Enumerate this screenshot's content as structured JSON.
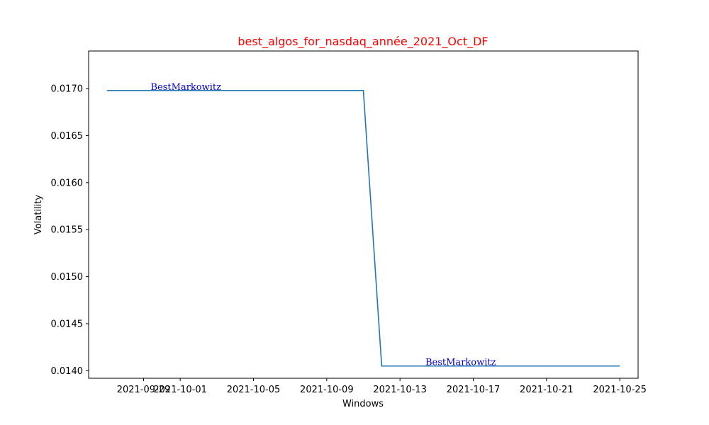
{
  "chart_data": {
    "type": "line",
    "title": "best_algos_for_nasdaq_année_2021_Oct_DF",
    "title_color": "#ff0000",
    "xlabel": "Windows",
    "ylabel": "Volatility",
    "x_ticks": [
      "2021-09-29",
      "2021-10-01",
      "2021-10-05",
      "2021-10-09",
      "2021-10-13",
      "2021-10-17",
      "2021-10-21",
      "2021-10-25"
    ],
    "y_ticks": [
      "0.0140",
      "0.0145",
      "0.0150",
      "0.0155",
      "0.0160",
      "0.0165",
      "0.0170"
    ],
    "xlim": [
      "2021-09-26",
      "2021-10-26"
    ],
    "ylim": [
      0.01392,
      0.0174
    ],
    "grid": false,
    "series": [
      {
        "color": "#1f77b4",
        "points": [
          {
            "x": "2021-09-27",
            "y": 0.01698
          },
          {
            "x": "2021-10-11",
            "y": 0.01698
          },
          {
            "x": "2021-10-12",
            "y": 0.01405
          },
          {
            "x": "2021-10-25",
            "y": 0.01405
          }
        ]
      }
    ],
    "annotations": [
      {
        "text": "BestMarkowitz",
        "x": "2021-09-29",
        "y": 0.01698,
        "color": "#0000cd"
      },
      {
        "text": "BestMarkowitz",
        "x": "2021-10-14",
        "y": 0.01405,
        "color": "#0000cd"
      }
    ]
  }
}
